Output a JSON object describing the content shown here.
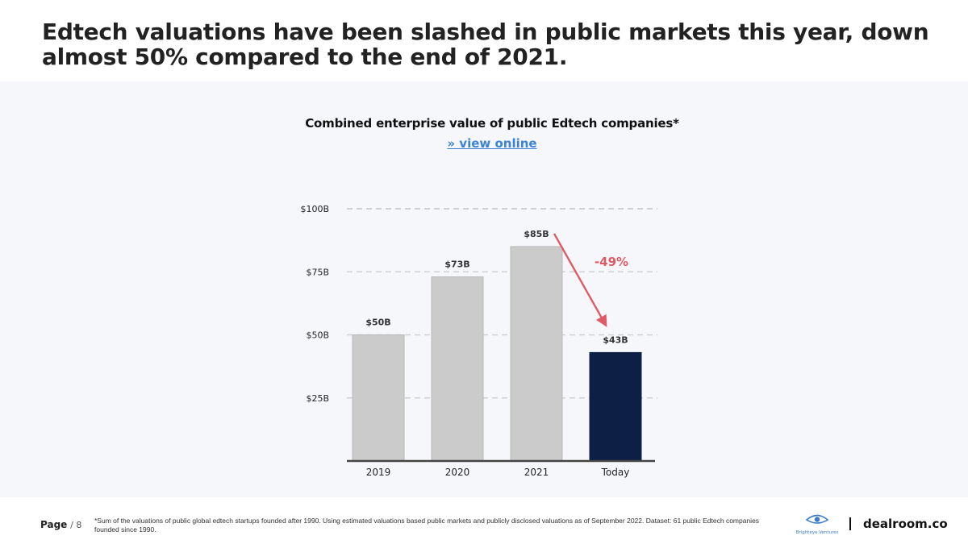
{
  "headline": "Edtech valuations have been slashed in public markets this year, down almost 50% compared to the end of 2021.",
  "chart": {
    "title": "Combined enterprise value of public Edtech companies*",
    "link_label": "» view online"
  },
  "chart_data": {
    "type": "bar",
    "title": "Combined enterprise value of public Edtech companies*",
    "categories": [
      "2019",
      "2020",
      "2021",
      "Today"
    ],
    "values": [
      50,
      73,
      85,
      43
    ],
    "value_labels": [
      "$50B",
      "$73B",
      "$85B",
      "$43B"
    ],
    "unit": "$B",
    "ylim": [
      0,
      100
    ],
    "yticks": [
      25,
      50,
      75,
      100
    ],
    "ytick_labels": [
      "$25B",
      "$50B",
      "$75B",
      "$100B"
    ],
    "grid": true,
    "colors": {
      "past": "#cbcbcb",
      "today": "#0d1f45",
      "change": "#e05a66"
    },
    "annotation": {
      "text": "-49%",
      "from": "2021",
      "to": "Today"
    }
  },
  "footer": {
    "page_label": "Page",
    "page_number": "/ 8",
    "footnote": "*Sum of the valuations of public global edtech startups founded after 1990.  Using estimated valuations based public markets and publicly disclosed valuations as of September 2022. Dataset: 61  public Edtech companies founded since 1990.",
    "brand_text": "dealroom.co",
    "partner_logo_text": "Brighteye Ventures"
  }
}
